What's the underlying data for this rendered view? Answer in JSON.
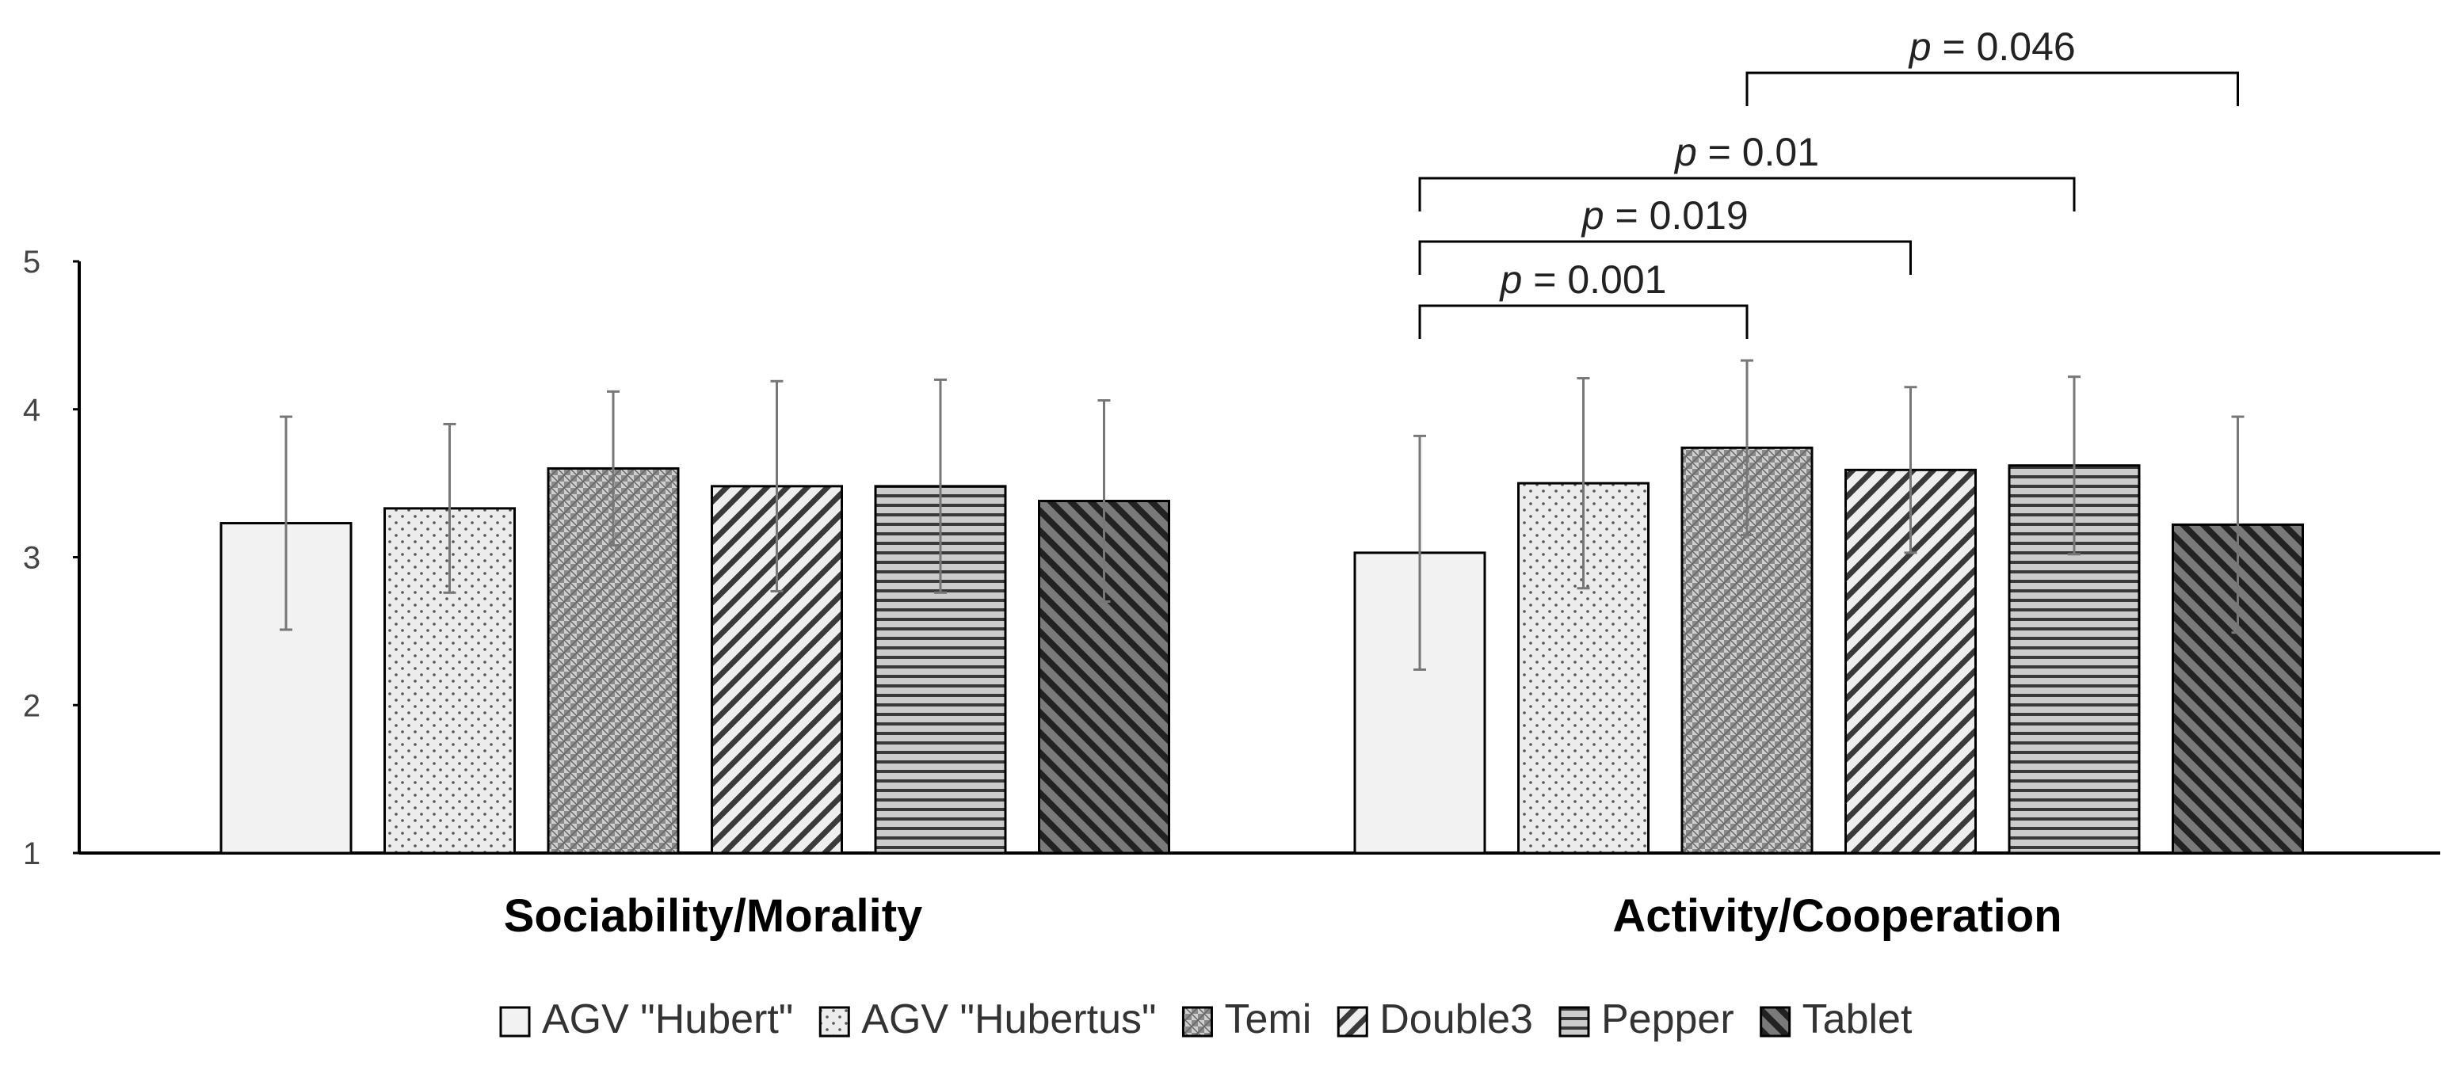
{
  "chart_data": {
    "type": "bar",
    "title": "",
    "xlabel": "",
    "ylabel": "",
    "ylim": [
      1,
      5
    ],
    "yticks": [
      1,
      2,
      3,
      4,
      5
    ],
    "grid": false,
    "legend_position": "bottom-center",
    "categories": [
      "Sociability/Morality",
      "Activity/Cooperation"
    ],
    "series": [
      {
        "name": "AGV \"Hubert\"",
        "pattern": "plain",
        "values": [
          3.23,
          3.03
        ],
        "errors": [
          0.72,
          0.79
        ]
      },
      {
        "name": "AGV \"Hubertus\"",
        "pattern": "dots",
        "values": [
          3.33,
          3.5
        ],
        "errors": [
          0.57,
          0.71
        ]
      },
      {
        "name": "Temi",
        "pattern": "checker",
        "values": [
          3.6,
          3.74
        ],
        "errors": [
          0.52,
          0.59
        ]
      },
      {
        "name": "Double3",
        "pattern": "diagonal-up",
        "values": [
          3.48,
          3.59
        ],
        "errors": [
          0.71,
          0.56
        ]
      },
      {
        "name": "Pepper",
        "pattern": "horizontal",
        "values": [
          3.48,
          3.62
        ],
        "errors": [
          0.72,
          0.6
        ]
      },
      {
        "name": "Tablet",
        "pattern": "diagonal-down",
        "values": [
          3.38,
          3.22
        ],
        "errors": [
          0.68,
          0.73
        ]
      }
    ],
    "annotations": [
      {
        "group": 1,
        "from": 0,
        "to": 2,
        "p_symbol": "p",
        "p_text": " = 0.001"
      },
      {
        "group": 1,
        "from": 0,
        "to": 3,
        "p_symbol": "p",
        "p_text": " = 0.019"
      },
      {
        "group": 1,
        "from": 0,
        "to": 4,
        "p_symbol": "p",
        "p_text": " = 0.01"
      },
      {
        "group": 1,
        "from": 2,
        "to": 5,
        "p_symbol": "p",
        "p_text": " = 0.046"
      }
    ]
  }
}
